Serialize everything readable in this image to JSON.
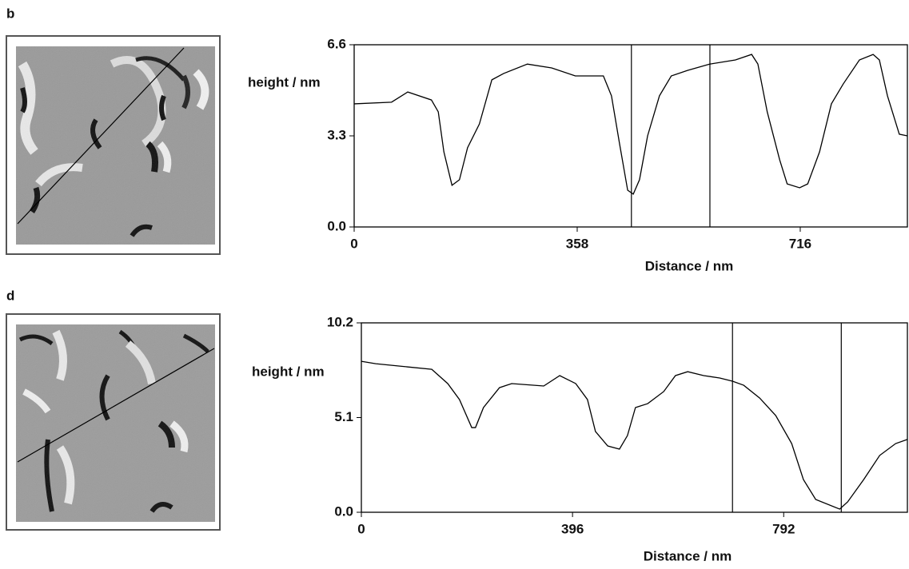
{
  "chart_data": [
    {
      "type": "line",
      "panel_label": "b",
      "ylabel": "height / nm",
      "xlabel": "Distance / nm",
      "xlim": [
        0,
        888
      ],
      "ylim": [
        0,
        6.6
      ],
      "xticks": [
        0,
        358,
        716
      ],
      "yticks": [
        {
          "value": 0,
          "label": "0.0"
        },
        3.3,
        6.6
      ],
      "cursors": [
        445,
        571
      ],
      "series": [
        {
          "color": "#000000",
          "x": [
            0,
            60,
            86,
            124,
            135,
            144,
            157,
            169,
            182,
            201,
            221,
            240,
            278,
            317,
            355,
            400,
            413,
            426,
            439,
            448,
            458,
            471,
            490,
            509,
            535,
            571,
            612,
            638,
            648,
            663,
            683,
            695,
            715,
            728,
            747,
            766,
            785,
            811,
            833,
            843,
            856,
            875,
            888
          ],
          "values": [
            4.46,
            4.52,
            4.89,
            4.6,
            4.17,
            2.72,
            1.51,
            1.71,
            2.87,
            3.73,
            5.33,
            5.56,
            5.9,
            5.76,
            5.47,
            5.47,
            4.75,
            3.01,
            1.33,
            1.19,
            1.71,
            3.3,
            4.75,
            5.47,
            5.67,
            5.9,
            6.05,
            6.25,
            5.9,
            4.17,
            2.43,
            1.56,
            1.42,
            1.56,
            2.72,
            4.46,
            5.18,
            6.05,
            6.25,
            6.05,
            4.75,
            3.36,
            3.3
          ]
        }
      ]
    },
    {
      "type": "line",
      "panel_label": "d",
      "ylabel": "height / nm",
      "xlabel": "Distance / nm",
      "xlim": [
        0,
        1024
      ],
      "ylim": [
        0,
        10.2
      ],
      "xticks": [
        0,
        396,
        792
      ],
      "yticks": [
        {
          "value": 0,
          "label": "0.0"
        },
        5.1,
        10.2
      ],
      "cursors": [
        696,
        900
      ],
      "series": [
        {
          "color": "#000000",
          "x": [
            0,
            27,
            72,
            132,
            162,
            184,
            207,
            214,
            229,
            259,
            282,
            342,
            372,
            402,
            424,
            439,
            462,
            484,
            499,
            514,
            537,
            567,
            589,
            612,
            642,
            672,
            696,
            717,
            747,
            777,
            807,
            829,
            852,
            897,
            912,
            942,
            972,
            1002,
            1024
          ],
          "values": [
            8.13,
            8.0,
            7.87,
            7.7,
            6.93,
            6.07,
            4.56,
            4.56,
            5.64,
            6.71,
            6.93,
            6.8,
            7.36,
            6.93,
            6.07,
            4.35,
            3.57,
            3.4,
            4.13,
            5.64,
            5.85,
            6.5,
            7.36,
            7.57,
            7.36,
            7.23,
            7.06,
            6.84,
            6.15,
            5.21,
            3.7,
            1.76,
            0.69,
            0.17,
            0.56,
            1.76,
            3.06,
            3.7,
            3.92
          ]
        }
      ]
    }
  ]
}
